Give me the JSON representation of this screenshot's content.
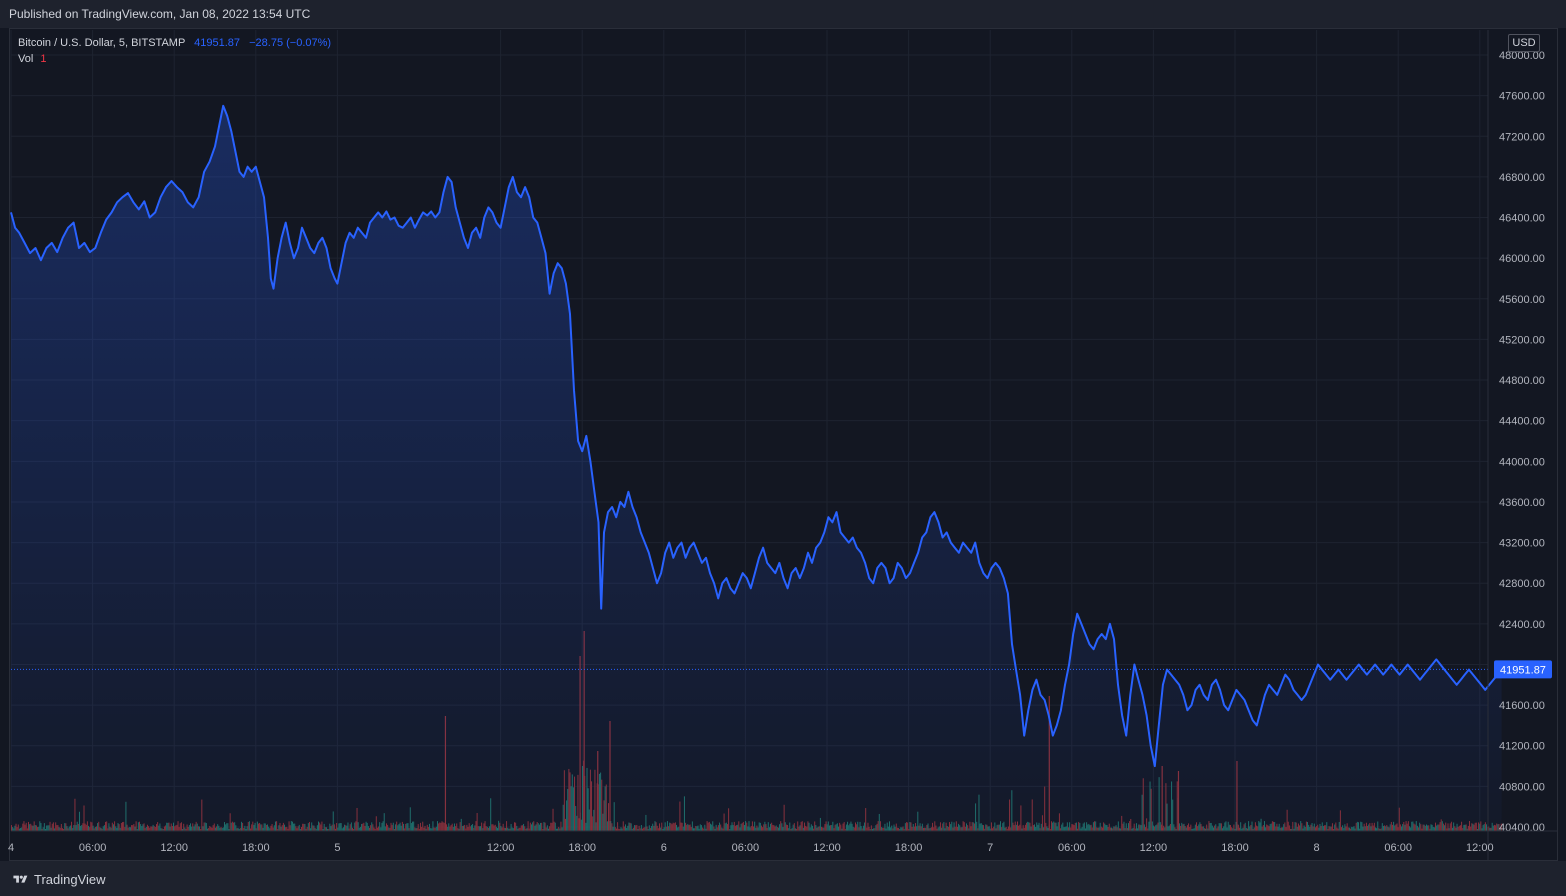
{
  "header": {
    "published": "Published on TradingView.com, Jan 08, 2022 13:54 UTC"
  },
  "legend": {
    "symbol": "Bitcoin / U.S. Dollar, 5, BITSTAMP",
    "last": "41951.87",
    "change": "−28.75 (−0.07%)",
    "volume_label": "Vol",
    "volume_value": "1"
  },
  "currency": "USD",
  "footer": {
    "brand": "TradingView"
  },
  "colors": {
    "line": "#2962ff",
    "up": "#26a69a",
    "down": "#ef5350",
    "background": "#131722"
  },
  "chart_data": {
    "type": "area",
    "series_symbol": "BTCUSD",
    "ylim": [
      40400,
      48000
    ],
    "y_ticks": [
      "48000.00",
      "47600.00",
      "47200.00",
      "46800.00",
      "46400.00",
      "46000.00",
      "45600.00",
      "45200.00",
      "44800.00",
      "44400.00",
      "44000.00",
      "43600.00",
      "43200.00",
      "42800.00",
      "42400.00",
      "42000.00",
      "41600.00",
      "41200.00",
      "40800.00",
      "40400.00"
    ],
    "x_ticks": [
      {
        "label": "4",
        "t": 0
      },
      {
        "label": "06:00",
        "t": 6
      },
      {
        "label": "12:00",
        "t": 12
      },
      {
        "label": "18:00",
        "t": 18
      },
      {
        "label": "5",
        "t": 24
      },
      {
        "label": "12:00",
        "t": 36
      },
      {
        "label": "18:00",
        "t": 42
      },
      {
        "label": "6",
        "t": 48
      },
      {
        "label": "06:00",
        "t": 54
      },
      {
        "label": "12:00",
        "t": 60
      },
      {
        "label": "18:00",
        "t": 66
      },
      {
        "label": "7",
        "t": 72
      },
      {
        "label": "06:00",
        "t": 78
      },
      {
        "label": "12:00",
        "t": 84
      },
      {
        "label": "18:00",
        "t": 90
      },
      {
        "label": "8",
        "t": 96
      },
      {
        "label": "06:00",
        "t": 102
      },
      {
        "label": "12:00",
        "t": 108
      }
    ],
    "last_price": 41951.87,
    "last_price_label": "41951.87",
    "price_points": [
      [
        0.0,
        46450
      ],
      [
        0.3,
        46300
      ],
      [
        0.6,
        46250
      ],
      [
        1.0,
        46150
      ],
      [
        1.4,
        46050
      ],
      [
        1.8,
        46100
      ],
      [
        2.2,
        45980
      ],
      [
        2.6,
        46100
      ],
      [
        3.0,
        46150
      ],
      [
        3.4,
        46060
      ],
      [
        3.8,
        46200
      ],
      [
        4.2,
        46300
      ],
      [
        4.6,
        46350
      ],
      [
        5.0,
        46100
      ],
      [
        5.4,
        46150
      ],
      [
        5.8,
        46060
      ],
      [
        6.2,
        46100
      ],
      [
        6.6,
        46250
      ],
      [
        7.0,
        46380
      ],
      [
        7.4,
        46450
      ],
      [
        7.8,
        46550
      ],
      [
        8.2,
        46600
      ],
      [
        8.6,
        46640
      ],
      [
        9.0,
        46550
      ],
      [
        9.4,
        46480
      ],
      [
        9.8,
        46560
      ],
      [
        10.2,
        46400
      ],
      [
        10.6,
        46450
      ],
      [
        11.0,
        46600
      ],
      [
        11.4,
        46700
      ],
      [
        11.8,
        46760
      ],
      [
        12.2,
        46700
      ],
      [
        12.6,
        46650
      ],
      [
        13.0,
        46550
      ],
      [
        13.4,
        46500
      ],
      [
        13.8,
        46600
      ],
      [
        14.2,
        46850
      ],
      [
        14.6,
        46950
      ],
      [
        15.0,
        47100
      ],
      [
        15.3,
        47300
      ],
      [
        15.6,
        47500
      ],
      [
        15.9,
        47400
      ],
      [
        16.2,
        47250
      ],
      [
        16.5,
        47050
      ],
      [
        16.8,
        46850
      ],
      [
        17.1,
        46800
      ],
      [
        17.4,
        46900
      ],
      [
        17.7,
        46850
      ],
      [
        18.0,
        46900
      ],
      [
        18.3,
        46750
      ],
      [
        18.6,
        46600
      ],
      [
        18.9,
        46200
      ],
      [
        19.1,
        45800
      ],
      [
        19.3,
        45700
      ],
      [
        19.6,
        46000
      ],
      [
        19.9,
        46200
      ],
      [
        20.2,
        46350
      ],
      [
        20.5,
        46150
      ],
      [
        20.8,
        46000
      ],
      [
        21.1,
        46100
      ],
      [
        21.4,
        46300
      ],
      [
        21.7,
        46200
      ],
      [
        22.0,
        46100
      ],
      [
        22.3,
        46050
      ],
      [
        22.6,
        46150
      ],
      [
        22.9,
        46200
      ],
      [
        23.2,
        46100
      ],
      [
        23.5,
        45900
      ],
      [
        23.8,
        45800
      ],
      [
        24.0,
        45750
      ],
      [
        24.3,
        45950
      ],
      [
        24.6,
        46150
      ],
      [
        24.9,
        46250
      ],
      [
        25.2,
        46200
      ],
      [
        25.5,
        46300
      ],
      [
        25.8,
        46250
      ],
      [
        26.1,
        46200
      ],
      [
        26.4,
        46350
      ],
      [
        26.7,
        46400
      ],
      [
        27.0,
        46450
      ],
      [
        27.3,
        46400
      ],
      [
        27.6,
        46460
      ],
      [
        27.9,
        46380
      ],
      [
        28.2,
        46400
      ],
      [
        28.5,
        46320
      ],
      [
        28.8,
        46300
      ],
      [
        29.1,
        46350
      ],
      [
        29.4,
        46400
      ],
      [
        29.7,
        46300
      ],
      [
        30.0,
        46380
      ],
      [
        30.3,
        46450
      ],
      [
        30.6,
        46420
      ],
      [
        30.9,
        46460
      ],
      [
        31.2,
        46400
      ],
      [
        31.5,
        46450
      ],
      [
        31.8,
        46650
      ],
      [
        32.1,
        46800
      ],
      [
        32.4,
        46750
      ],
      [
        32.7,
        46500
      ],
      [
        33.0,
        46350
      ],
      [
        33.3,
        46200
      ],
      [
        33.6,
        46100
      ],
      [
        33.9,
        46250
      ],
      [
        34.2,
        46300
      ],
      [
        34.5,
        46200
      ],
      [
        34.8,
        46400
      ],
      [
        35.1,
        46500
      ],
      [
        35.4,
        46450
      ],
      [
        35.7,
        46350
      ],
      [
        36.0,
        46300
      ],
      [
        36.3,
        46500
      ],
      [
        36.6,
        46700
      ],
      [
        36.9,
        46800
      ],
      [
        37.2,
        46650
      ],
      [
        37.5,
        46600
      ],
      [
        37.8,
        46700
      ],
      [
        38.1,
        46600
      ],
      [
        38.4,
        46400
      ],
      [
        38.7,
        46350
      ],
      [
        39.0,
        46200
      ],
      [
        39.3,
        46050
      ],
      [
        39.6,
        45650
      ],
      [
        39.9,
        45850
      ],
      [
        40.2,
        45950
      ],
      [
        40.5,
        45900
      ],
      [
        40.8,
        45750
      ],
      [
        41.1,
        45450
      ],
      [
        41.4,
        44700
      ],
      [
        41.7,
        44200
      ],
      [
        42.0,
        44100
      ],
      [
        42.3,
        44250
      ],
      [
        42.6,
        44000
      ],
      [
        42.9,
        43700
      ],
      [
        43.2,
        43400
      ],
      [
        43.4,
        42550
      ],
      [
        43.6,
        43300
      ],
      [
        43.9,
        43500
      ],
      [
        44.2,
        43550
      ],
      [
        44.5,
        43450
      ],
      [
        44.8,
        43600
      ],
      [
        45.1,
        43550
      ],
      [
        45.4,
        43700
      ],
      [
        45.7,
        43550
      ],
      [
        46.0,
        43450
      ],
      [
        46.3,
        43300
      ],
      [
        46.6,
        43200
      ],
      [
        46.9,
        43100
      ],
      [
        47.2,
        42950
      ],
      [
        47.5,
        42800
      ],
      [
        47.8,
        42900
      ],
      [
        48.1,
        43100
      ],
      [
        48.4,
        43200
      ],
      [
        48.7,
        43050
      ],
      [
        49.0,
        43150
      ],
      [
        49.3,
        43200
      ],
      [
        49.6,
        43050
      ],
      [
        49.9,
        43150
      ],
      [
        50.2,
        43200
      ],
      [
        50.5,
        43100
      ],
      [
        50.8,
        43000
      ],
      [
        51.1,
        43050
      ],
      [
        51.4,
        42900
      ],
      [
        51.7,
        42800
      ],
      [
        52.0,
        42650
      ],
      [
        52.3,
        42800
      ],
      [
        52.6,
        42850
      ],
      [
        52.9,
        42750
      ],
      [
        53.2,
        42700
      ],
      [
        53.5,
        42800
      ],
      [
        53.8,
        42900
      ],
      [
        54.1,
        42850
      ],
      [
        54.4,
        42750
      ],
      [
        54.7,
        42900
      ],
      [
        55.0,
        43050
      ],
      [
        55.3,
        43150
      ],
      [
        55.6,
        43000
      ],
      [
        55.9,
        42950
      ],
      [
        56.2,
        42900
      ],
      [
        56.5,
        43000
      ],
      [
        56.8,
        42850
      ],
      [
        57.1,
        42750
      ],
      [
        57.4,
        42900
      ],
      [
        57.7,
        42950
      ],
      [
        58.0,
        42850
      ],
      [
        58.3,
        42950
      ],
      [
        58.6,
        43100
      ],
      [
        58.9,
        43000
      ],
      [
        59.2,
        43150
      ],
      [
        59.5,
        43200
      ],
      [
        59.8,
        43300
      ],
      [
        60.1,
        43450
      ],
      [
        60.4,
        43400
      ],
      [
        60.7,
        43500
      ],
      [
        61.0,
        43300
      ],
      [
        61.3,
        43250
      ],
      [
        61.6,
        43200
      ],
      [
        61.9,
        43250
      ],
      [
        62.2,
        43150
      ],
      [
        62.5,
        43100
      ],
      [
        62.8,
        43000
      ],
      [
        63.1,
        42850
      ],
      [
        63.4,
        42800
      ],
      [
        63.7,
        42950
      ],
      [
        64.0,
        43000
      ],
      [
        64.3,
        42950
      ],
      [
        64.6,
        42800
      ],
      [
        64.9,
        42850
      ],
      [
        65.2,
        43000
      ],
      [
        65.5,
        42950
      ],
      [
        65.8,
        42850
      ],
      [
        66.1,
        42900
      ],
      [
        66.4,
        43000
      ],
      [
        66.7,
        43100
      ],
      [
        67.0,
        43250
      ],
      [
        67.3,
        43300
      ],
      [
        67.6,
        43450
      ],
      [
        67.9,
        43500
      ],
      [
        68.2,
        43400
      ],
      [
        68.5,
        43250
      ],
      [
        68.8,
        43300
      ],
      [
        69.1,
        43200
      ],
      [
        69.4,
        43150
      ],
      [
        69.7,
        43100
      ],
      [
        70.0,
        43200
      ],
      [
        70.3,
        43150
      ],
      [
        70.6,
        43100
      ],
      [
        70.9,
        43200
      ],
      [
        71.2,
        43000
      ],
      [
        71.5,
        42900
      ],
      [
        71.8,
        42850
      ],
      [
        72.1,
        42950
      ],
      [
        72.4,
        43000
      ],
      [
        72.7,
        42950
      ],
      [
        73.0,
        42850
      ],
      [
        73.3,
        42700
      ],
      [
        73.6,
        42200
      ],
      [
        73.9,
        41950
      ],
      [
        74.2,
        41700
      ],
      [
        74.5,
        41300
      ],
      [
        74.8,
        41550
      ],
      [
        75.1,
        41750
      ],
      [
        75.4,
        41850
      ],
      [
        75.7,
        41700
      ],
      [
        76.0,
        41650
      ],
      [
        76.3,
        41500
      ],
      [
        76.6,
        41300
      ],
      [
        76.9,
        41400
      ],
      [
        77.2,
        41550
      ],
      [
        77.5,
        41800
      ],
      [
        77.8,
        42000
      ],
      [
        78.1,
        42300
      ],
      [
        78.4,
        42500
      ],
      [
        78.7,
        42400
      ],
      [
        79.0,
        42300
      ],
      [
        79.3,
        42200
      ],
      [
        79.6,
        42150
      ],
      [
        79.9,
        42250
      ],
      [
        80.2,
        42300
      ],
      [
        80.5,
        42250
      ],
      [
        80.8,
        42400
      ],
      [
        81.1,
        42250
      ],
      [
        81.4,
        41800
      ],
      [
        81.7,
        41500
      ],
      [
        82.0,
        41300
      ],
      [
        82.3,
        41700
      ],
      [
        82.6,
        42000
      ],
      [
        82.9,
        41850
      ],
      [
        83.2,
        41700
      ],
      [
        83.5,
        41500
      ],
      [
        83.8,
        41200
      ],
      [
        84.1,
        41000
      ],
      [
        84.4,
        41400
      ],
      [
        84.7,
        41800
      ],
      [
        85.0,
        41950
      ],
      [
        85.3,
        41900
      ],
      [
        85.6,
        41850
      ],
      [
        85.9,
        41800
      ],
      [
        86.2,
        41700
      ],
      [
        86.5,
        41550
      ],
      [
        86.8,
        41600
      ],
      [
        87.1,
        41750
      ],
      [
        87.4,
        41800
      ],
      [
        87.7,
        41700
      ],
      [
        88.0,
        41650
      ],
      [
        88.3,
        41800
      ],
      [
        88.6,
        41850
      ],
      [
        88.9,
        41750
      ],
      [
        89.2,
        41600
      ],
      [
        89.5,
        41550
      ],
      [
        89.8,
        41650
      ],
      [
        90.1,
        41750
      ],
      [
        90.4,
        41700
      ],
      [
        90.7,
        41650
      ],
      [
        91.0,
        41550
      ],
      [
        91.3,
        41450
      ],
      [
        91.6,
        41400
      ],
      [
        91.9,
        41550
      ],
      [
        92.2,
        41700
      ],
      [
        92.5,
        41800
      ],
      [
        92.8,
        41750
      ],
      [
        93.1,
        41700
      ],
      [
        93.4,
        41800
      ],
      [
        93.7,
        41900
      ],
      [
        94.0,
        41850
      ],
      [
        94.3,
        41750
      ],
      [
        94.6,
        41700
      ],
      [
        94.9,
        41650
      ],
      [
        95.2,
        41700
      ],
      [
        95.5,
        41800
      ],
      [
        95.8,
        41900
      ],
      [
        96.1,
        42000
      ],
      [
        96.4,
        41950
      ],
      [
        96.7,
        41900
      ],
      [
        97.0,
        41850
      ],
      [
        97.3,
        41900
      ],
      [
        97.6,
        41950
      ],
      [
        97.9,
        41900
      ],
      [
        98.2,
        41850
      ],
      [
        98.5,
        41900
      ],
      [
        98.8,
        41950
      ],
      [
        99.1,
        42000
      ],
      [
        99.4,
        41950
      ],
      [
        99.7,
        41900
      ],
      [
        100.0,
        41950
      ],
      [
        100.3,
        42000
      ],
      [
        100.6,
        41950
      ],
      [
        100.9,
        41900
      ],
      [
        101.2,
        41950
      ],
      [
        101.5,
        42000
      ],
      [
        101.8,
        41950
      ],
      [
        102.1,
        41900
      ],
      [
        102.4,
        41950
      ],
      [
        102.7,
        42000
      ],
      [
        103.0,
        41950
      ],
      [
        103.3,
        41900
      ],
      [
        103.6,
        41850
      ],
      [
        103.9,
        41900
      ],
      [
        104.2,
        41950
      ],
      [
        104.5,
        42000
      ],
      [
        104.8,
        42050
      ],
      [
        105.1,
        42000
      ],
      [
        105.4,
        41950
      ],
      [
        105.7,
        41900
      ],
      [
        106.0,
        41850
      ],
      [
        106.3,
        41800
      ],
      [
        106.6,
        41850
      ],
      [
        106.9,
        41900
      ],
      [
        107.2,
        41950
      ],
      [
        107.5,
        41900
      ],
      [
        107.8,
        41850
      ],
      [
        108.1,
        41800
      ],
      [
        108.4,
        41750
      ],
      [
        108.7,
        41800
      ],
      [
        109.0,
        41850
      ],
      [
        109.3,
        41900
      ],
      [
        109.6,
        41951.87
      ]
    ]
  }
}
